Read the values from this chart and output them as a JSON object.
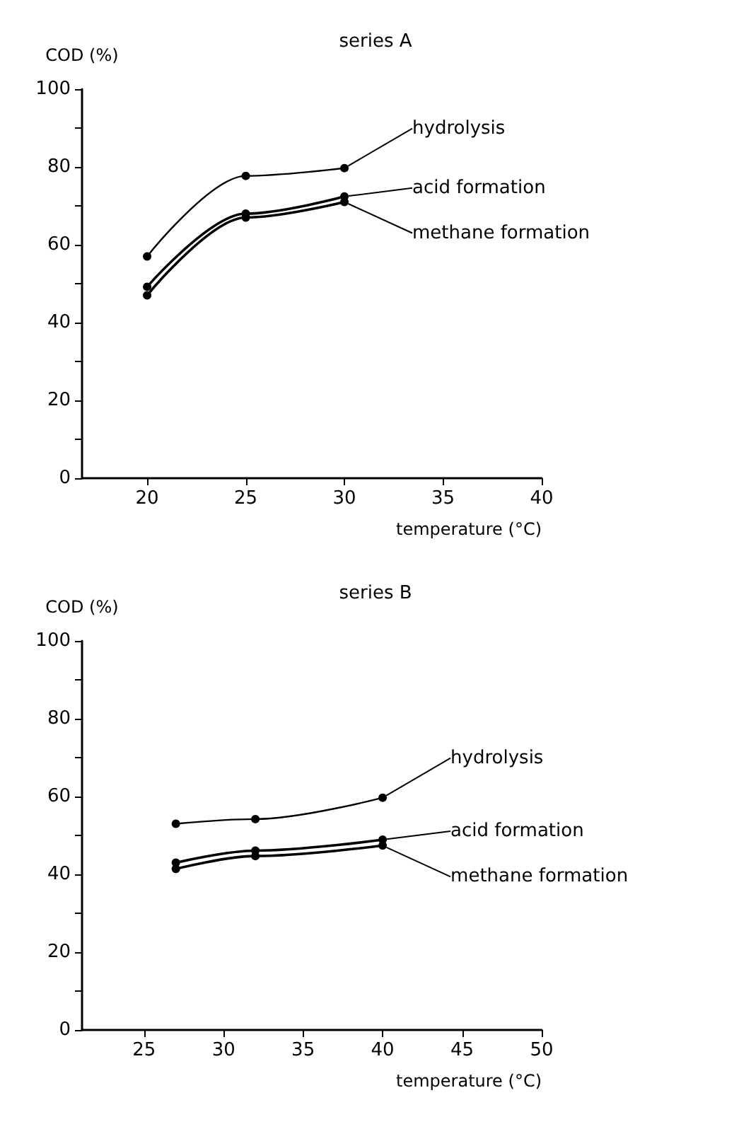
{
  "chart_data": [
    {
      "type": "line",
      "title": "series A",
      "xlabel": "temperature (°C)",
      "ylabel": "COD (%)",
      "marker": "circle",
      "line_style": "solid",
      "grid": false,
      "legend": "right",
      "xlim": [
        16.7,
        40
      ],
      "xticks": [
        20,
        25,
        30,
        35,
        40
      ],
      "ylim": [
        0,
        100
      ],
      "yticks": [
        0,
        {
          "value": 10,
          "label": null
        },
        20,
        {
          "value": 30,
          "label": null
        },
        40,
        {
          "value": 50,
          "label": null
        },
        60,
        {
          "value": 70,
          "label": null
        },
        80,
        {
          "value": 90,
          "label": null
        },
        100
      ],
      "x": [
        20,
        25,
        30
      ],
      "series": [
        {
          "name": "hydrolysis",
          "color": "#000000",
          "values": [
            57,
            77.7,
            79.7
          ]
        },
        {
          "name": "acid formation",
          "color": "#000000",
          "values": [
            49.2,
            68,
            72.4
          ]
        },
        {
          "name": "methane formation",
          "color": "#000000",
          "values": [
            47,
            67,
            71
          ]
        }
      ]
    },
    {
      "type": "line",
      "title": "series B",
      "xlabel": "temperature (°C)",
      "ylabel": "COD (%)",
      "marker": "circle",
      "line_style": "solid",
      "grid": false,
      "legend": "right",
      "xlim": [
        21.1,
        50
      ],
      "xticks": [
        25,
        30,
        35,
        40,
        45,
        50
      ],
      "ylim": [
        0,
        100
      ],
      "yticks": [
        0,
        {
          "value": 10,
          "label": null
        },
        20,
        {
          "value": 30,
          "label": null
        },
        40,
        {
          "value": 50,
          "label": null
        },
        60,
        {
          "value": 70,
          "label": null
        },
        80,
        {
          "value": 90,
          "label": null
        },
        100
      ],
      "x": [
        27,
        32,
        40
      ],
      "series": [
        {
          "name": "hydrolysis",
          "color": "#000000",
          "values": [
            53,
            54.2,
            59.7
          ]
        },
        {
          "name": "acid formation",
          "color": "#000000",
          "values": [
            43,
            46.1,
            48.9
          ]
        },
        {
          "name": "methane formation",
          "color": "#000000",
          "values": [
            41.4,
            44.7,
            47.4
          ]
        }
      ]
    }
  ]
}
